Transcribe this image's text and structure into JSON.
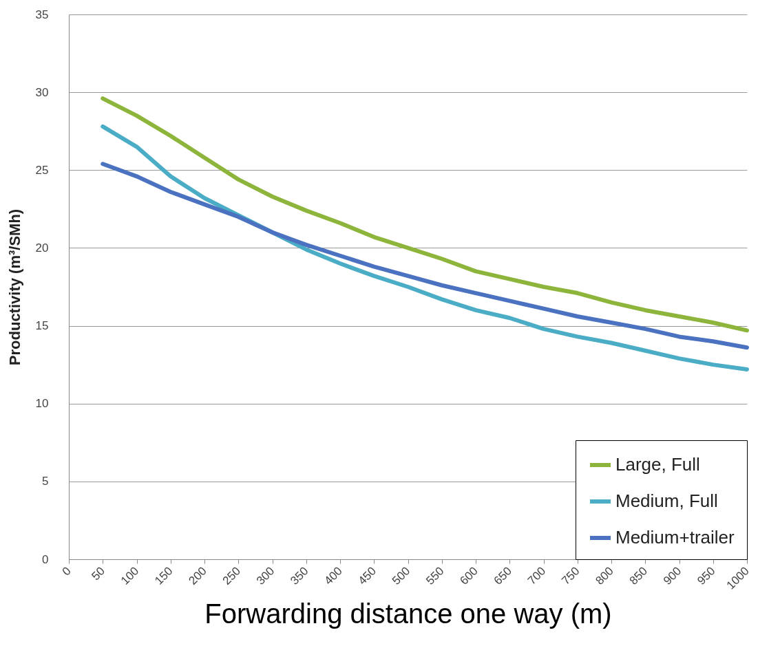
{
  "chart_data": {
    "type": "line",
    "xlabel": "Forwarding distance one way (m)",
    "ylabel": "Productivity (m³/SMh)",
    "x": [
      50,
      100,
      150,
      200,
      250,
      300,
      350,
      400,
      450,
      500,
      550,
      600,
      650,
      700,
      750,
      800,
      850,
      900,
      950,
      1000
    ],
    "xlim": [
      0,
      1000
    ],
    "xticks": [
      0,
      50,
      100,
      150,
      200,
      250,
      300,
      350,
      400,
      450,
      500,
      550,
      600,
      650,
      700,
      750,
      800,
      850,
      900,
      950,
      1000
    ],
    "ylim": [
      0,
      35
    ],
    "yticks": [
      0,
      5,
      10,
      15,
      20,
      25,
      30,
      35
    ],
    "grid": "y",
    "legend": "bottom right",
    "marker": "none",
    "line_style": "solid",
    "series": [
      {
        "name": "Large, Full",
        "color": "#8db53c",
        "values": [
          29.6,
          28.5,
          27.2,
          25.8,
          24.4,
          23.3,
          22.4,
          21.6,
          20.7,
          20.0,
          19.3,
          18.5,
          18.0,
          17.5,
          17.1,
          16.5,
          16.0,
          15.6,
          15.2,
          14.7
        ]
      },
      {
        "name": "Medium, Full",
        "color": "#4bacc6",
        "values": [
          27.8,
          26.5,
          24.6,
          23.2,
          22.1,
          21.0,
          19.9,
          19.0,
          18.2,
          17.5,
          16.7,
          16.0,
          15.5,
          14.8,
          14.3,
          13.9,
          13.4,
          12.9,
          12.5,
          12.2
        ]
      },
      {
        "name": "Medium+trailer",
        "color": "#4a72c0",
        "values": [
          25.4,
          24.6,
          23.6,
          22.8,
          22.0,
          21.0,
          20.2,
          19.5,
          18.8,
          18.2,
          17.6,
          17.1,
          16.6,
          16.1,
          15.6,
          15.2,
          14.8,
          14.3,
          14.0,
          13.6
        ]
      }
    ]
  }
}
